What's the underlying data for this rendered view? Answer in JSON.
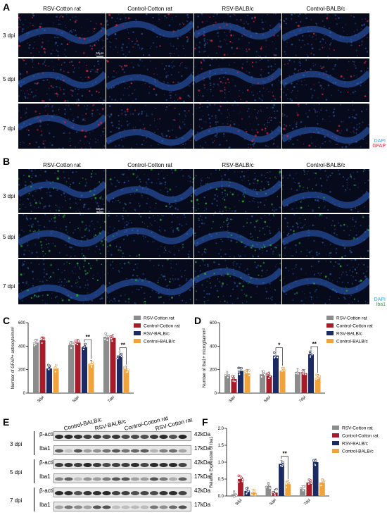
{
  "panels": {
    "A": {
      "letter": "A",
      "columns": [
        "RSV-Cotton rat",
        "Control-Cotton rat",
        "RSV-BALB/c",
        "Control-BALB/c"
      ],
      "rows": [
        "3 dpi",
        "5 dpi",
        "7 dpi"
      ],
      "scalebar": "50μm",
      "legend": [
        "DAPI",
        "GFAP"
      ],
      "colors": {
        "DAPI": "#3aa0e0",
        "GFAP": "#e0203a"
      }
    },
    "B": {
      "letter": "B",
      "columns": [
        "RSV-Cotton rat",
        "Control-Cotton rat",
        "RSV-BALB/c",
        "Control-BALB/c"
      ],
      "rows": [
        "3 dpi",
        "5 dpi",
        "7 dpi"
      ],
      "scalebar": "50μm",
      "legend": [
        "DAPI",
        "Iba1"
      ],
      "colors": {
        "DAPI": "#3aa0e0",
        "Iba1": "#22aa33"
      }
    },
    "C": {
      "letter": "C"
    },
    "D": {
      "letter": "D"
    },
    "E": {
      "letter": "E",
      "groups": [
        "Control-BALB/c",
        "RSV-BALB/c",
        "Control-Cotton rat",
        "RSV-Cotton rat"
      ],
      "rows": [
        {
          "dpi": "3 dpi",
          "bands": [
            {
              "name": "β-actin",
              "kda": "42kDa"
            },
            {
              "name": "Iba1",
              "kda": "17kDa"
            }
          ]
        },
        {
          "dpi": "5 dpi",
          "bands": [
            {
              "name": "β-actin",
              "kda": "42kDa"
            },
            {
              "name": "Iba1",
              "kda": "17kDa"
            }
          ]
        },
        {
          "dpi": "7 dpi",
          "bands": [
            {
              "name": "β-actin",
              "kda": "42kDa"
            },
            {
              "name": "Iba1",
              "kda": "17kDa"
            }
          ]
        }
      ]
    },
    "F": {
      "letter": "F"
    }
  },
  "chart_data": [
    {
      "id": "C",
      "type": "bar",
      "categories": [
        "3dpi",
        "5dpi",
        "7dpi"
      ],
      "ylabel": "Number of GFAP+ astrocyte/mm²",
      "ylim": [
        0,
        600
      ],
      "yticks": [
        "0",
        "200",
        "400",
        "600"
      ],
      "series": [
        {
          "name": "RSV-Cotton rat",
          "color": "#8c8c8c",
          "values": [
            430,
            410,
            480
          ]
        },
        {
          "name": "Control-Cotton rat",
          "color": "#a81c2a",
          "values": [
            450,
            430,
            470
          ]
        },
        {
          "name": "RSV-BALB/c",
          "color": "#1b2a63",
          "values": [
            210,
            390,
            320
          ]
        },
        {
          "name": "Control-BALB/c",
          "color": "#f0a23c",
          "values": [
            210,
            250,
            200
          ]
        }
      ],
      "significance": [
        {
          "category": "5dpi",
          "label": "**"
        },
        {
          "category": "7dpi",
          "label": "**"
        }
      ]
    },
    {
      "id": "D",
      "type": "bar",
      "categories": [
        "3dpi",
        "5dpi",
        "7dpi"
      ],
      "ylabel": "Number of Iba1+ microglia/mm²",
      "ylim": [
        0,
        600
      ],
      "yticks": [
        "0",
        "200",
        "400",
        "600"
      ],
      "series": [
        {
          "name": "RSV-Cotton rat",
          "color": "#8c8c8c",
          "values": [
            150,
            160,
            180
          ]
        },
        {
          "name": "Control-Cotton rat",
          "color": "#a81c2a",
          "values": [
            120,
            150,
            170
          ]
        },
        {
          "name": "RSV-BALB/c",
          "color": "#1b2a63",
          "values": [
            190,
            320,
            330
          ]
        },
        {
          "name": "Control-BALB/c",
          "color": "#f0a23c",
          "values": [
            170,
            190,
            130
          ]
        }
      ],
      "significance": [
        {
          "category": "5dpi",
          "label": "*"
        },
        {
          "category": "7dpi",
          "label": "**"
        }
      ]
    },
    {
      "id": "F",
      "type": "bar",
      "categories": [
        "3dpi",
        "5dpi",
        "7dpi"
      ],
      "ylabel": "Relative Expression of Iba1",
      "ylim": [
        0,
        2.0
      ],
      "yticks": [
        "0.0",
        "0.5",
        "1.0",
        "1.5",
        "2.0"
      ],
      "series": [
        {
          "name": "RSV-Cotton rat",
          "color": "#8c8c8c",
          "values": [
            0.05,
            0.3,
            0.2
          ]
        },
        {
          "name": "Control-Cotton rat",
          "color": "#a81c2a",
          "values": [
            0.5,
            0.1,
            0.4
          ]
        },
        {
          "name": "RSV-BALB/c",
          "color": "#1b2a63",
          "values": [
            0.15,
            0.95,
            1.0
          ]
        },
        {
          "name": "Control-BALB/c",
          "color": "#f0a23c",
          "values": [
            0.1,
            0.35,
            0.4
          ]
        }
      ],
      "significance": [
        {
          "category": "5dpi",
          "label": "**"
        }
      ]
    }
  ]
}
